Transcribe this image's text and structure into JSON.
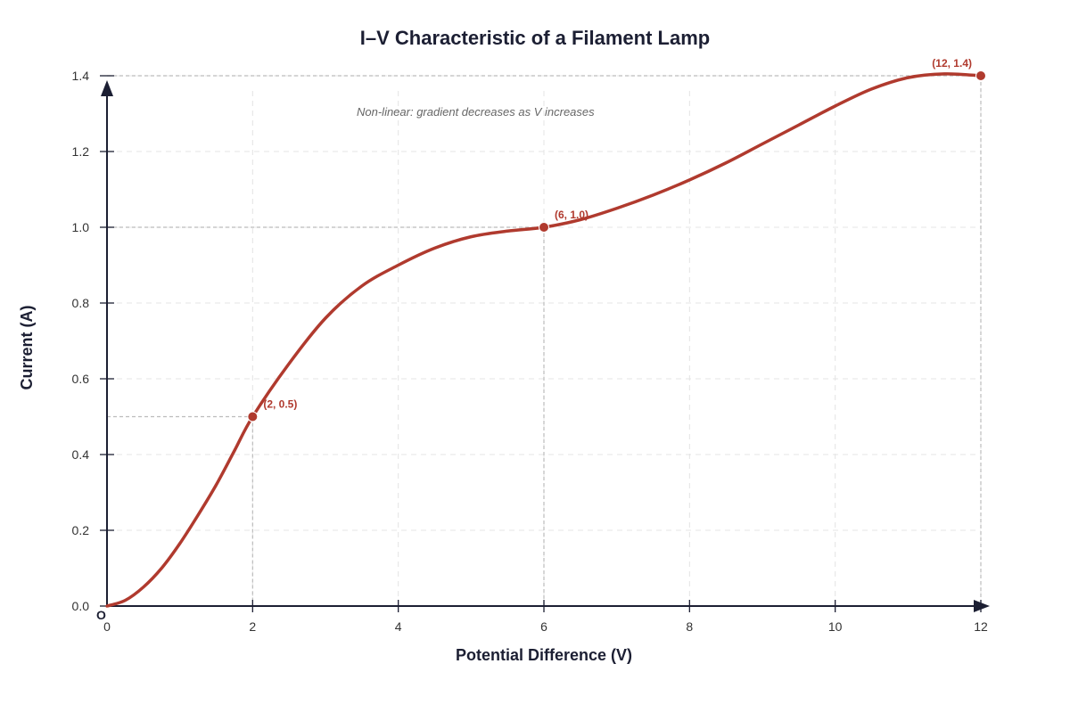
{
  "chart_data": {
    "type": "line",
    "title": "I–V Characteristic of a Filament Lamp",
    "xlabel": "Potential Difference (V)",
    "ylabel": "Current (A)",
    "xlim": [
      0,
      12
    ],
    "ylim": [
      0,
      1.4
    ],
    "x_ticks": [
      0,
      2,
      4,
      6,
      8,
      10,
      12
    ],
    "y_ticks": [
      0.0,
      0.2,
      0.4,
      0.6,
      0.8,
      1.0,
      1.2,
      1.4
    ],
    "x_tick_labels": [
      "0",
      "2",
      "4",
      "6",
      "8",
      "10",
      "12"
    ],
    "y_tick_labels": [
      "0.0",
      "0.2",
      "0.4",
      "0.6",
      "0.8",
      "1.0",
      "1.2",
      "1.4"
    ],
    "grid": true,
    "origin_label": "O",
    "series": [
      {
        "x": [
          0,
          0.25,
          0.5,
          0.75,
          1,
          1.25,
          1.5,
          1.75,
          2,
          2.5,
          3,
          3.5,
          4,
          4.5,
          5,
          5.5,
          6,
          6.5,
          7,
          7.5,
          8,
          8.5,
          9,
          9.5,
          10,
          10.5,
          11,
          11.5,
          12
        ],
        "values": [
          0,
          0.015,
          0.05,
          0.1,
          0.165,
          0.24,
          0.32,
          0.41,
          0.5,
          0.64,
          0.76,
          0.845,
          0.9,
          0.945,
          0.975,
          0.99,
          1.0,
          1.02,
          1.05,
          1.085,
          1.125,
          1.17,
          1.22,
          1.27,
          1.32,
          1.365,
          1.395,
          1.405,
          1.4
        ],
        "color": "#b03a2e"
      }
    ],
    "highlighted_points": [
      {
        "x": 2,
        "y": 0.5,
        "label": "(2, 0.5)"
      },
      {
        "x": 6,
        "y": 1.0,
        "label": "(6, 1.0)"
      },
      {
        "x": 12,
        "y": 1.4,
        "label": "(12, 1.4)"
      }
    ],
    "annotation": "Non-linear: gradient decreases as V increases"
  }
}
